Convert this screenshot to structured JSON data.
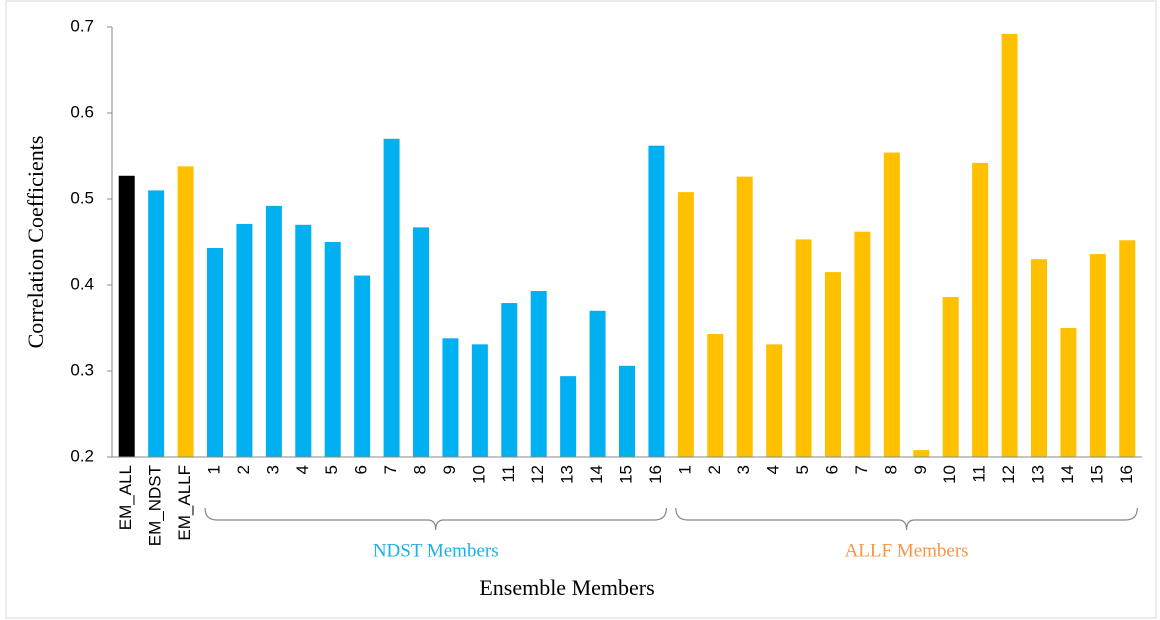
{
  "chart_data": {
    "type": "bar",
    "x_label": "Ensemble Members",
    "y_label": "Correlation Coefficients",
    "categories": [
      "EM_ALL",
      "EM_NDST",
      "EM_ALLF",
      "1",
      "2",
      "3",
      "4",
      "5",
      "6",
      "7",
      "8",
      "9",
      "10",
      "11",
      "12",
      "13",
      "14",
      "15",
      "16",
      "1",
      "2",
      "3",
      "4",
      "5",
      "6",
      "7",
      "8",
      "9",
      "10",
      "11",
      "12",
      "13",
      "14",
      "15",
      "16"
    ],
    "values": [
      0.527,
      0.51,
      0.538,
      0.443,
      0.471,
      0.492,
      0.47,
      0.45,
      0.411,
      0.57,
      0.467,
      0.338,
      0.331,
      0.379,
      0.393,
      0.294,
      0.37,
      0.306,
      0.562,
      0.508,
      0.343,
      0.526,
      0.331,
      0.453,
      0.415,
      0.462,
      0.554,
      0.208,
      0.386,
      0.542,
      0.692,
      0.43,
      0.35,
      0.436,
      0.452
    ],
    "colors": [
      "#000000",
      "#00b0f0",
      "#ffc000",
      "#00b0f0",
      "#00b0f0",
      "#00b0f0",
      "#00b0f0",
      "#00b0f0",
      "#00b0f0",
      "#00b0f0",
      "#00b0f0",
      "#00b0f0",
      "#00b0f0",
      "#00b0f0",
      "#00b0f0",
      "#00b0f0",
      "#00b0f0",
      "#00b0f0",
      "#00b0f0",
      "#ffc000",
      "#ffc000",
      "#ffc000",
      "#ffc000",
      "#ffc000",
      "#ffc000",
      "#ffc000",
      "#ffc000",
      "#ffc000",
      "#ffc000",
      "#ffc000",
      "#ffc000",
      "#ffc000",
      "#ffc000",
      "#ffc000",
      "#ffc000"
    ],
    "annotations": [
      {
        "text": "NDST Members",
        "color": "#1ab0ea"
      },
      {
        "text": "ALLF Members",
        "color": "#f79646"
      }
    ],
    "ylim": [
      0.2,
      0.7
    ],
    "yticks": [
      0.2,
      0.3,
      0.4,
      0.5,
      0.6,
      0.7
    ],
    "grid": false
  }
}
